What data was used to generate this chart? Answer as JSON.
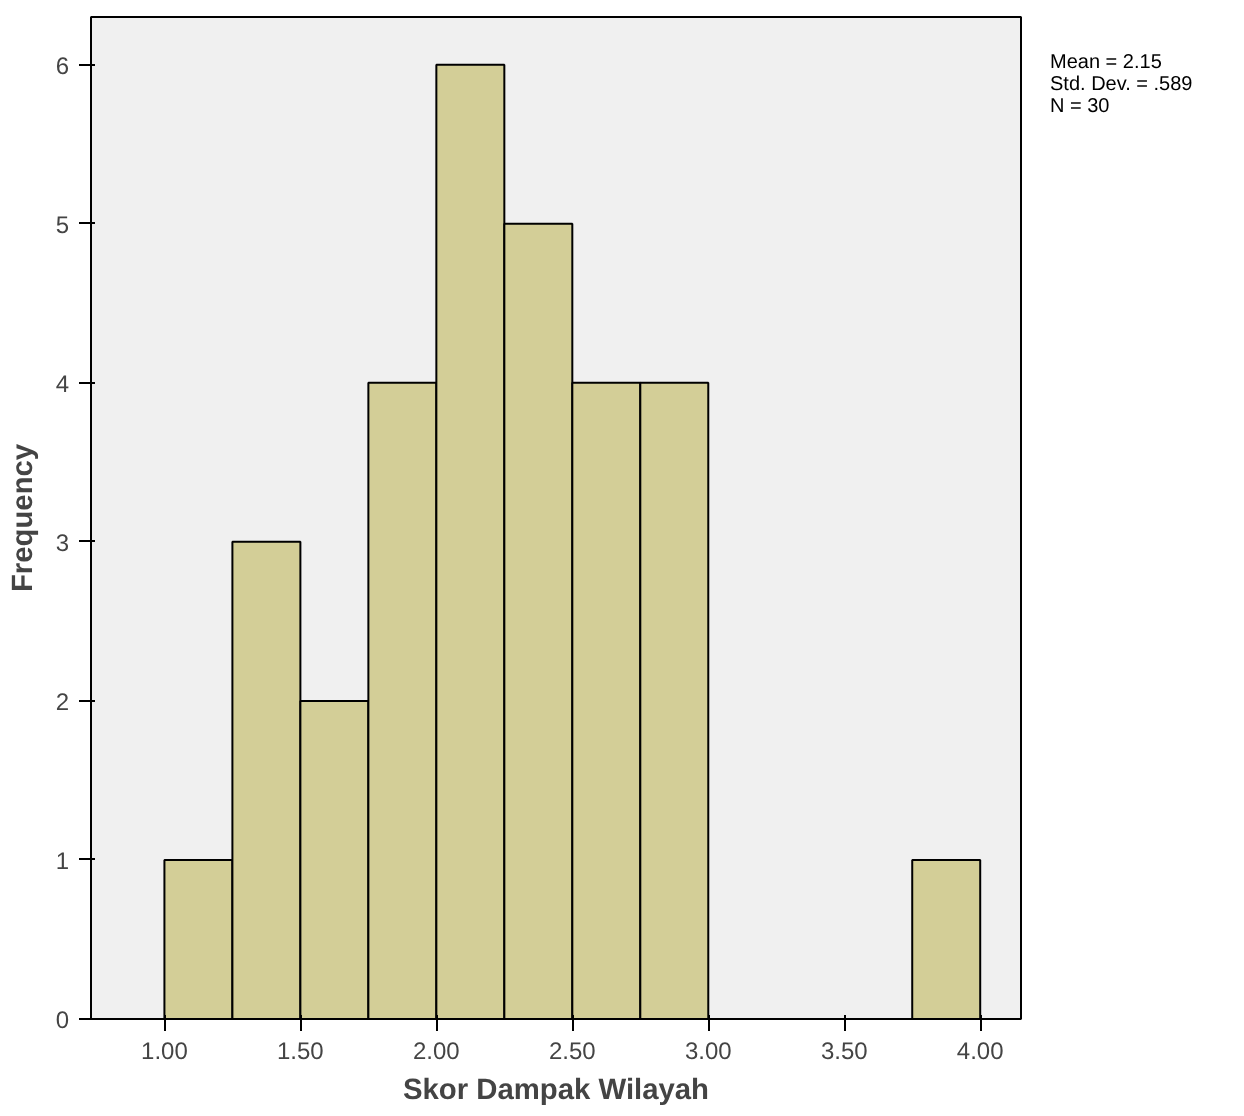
{
  "chart_data": {
    "type": "histogram",
    "xlabel": "Skor Dampak Wilayah",
    "ylabel": "Frequency",
    "bins": [
      1.0,
      1.25,
      1.5,
      1.75,
      2.0,
      2.25,
      2.5,
      2.75,
      3.0,
      3.25,
      3.5,
      3.75,
      4.0
    ],
    "values": [
      1,
      3,
      2,
      4,
      6,
      5,
      4,
      4,
      0,
      0,
      0,
      1
    ],
    "color": "#d3ce97",
    "xlim": [
      0.73,
      4.15
    ],
    "ylim": [
      0,
      6.3
    ],
    "xticks": [
      {
        "value": 1.0,
        "label": "1.00"
      },
      {
        "value": 1.5,
        "label": "1.50"
      },
      {
        "value": 2.0,
        "label": "2.00"
      },
      {
        "value": 2.5,
        "label": "2.50"
      },
      {
        "value": 3.0,
        "label": "3.00"
      },
      {
        "value": 3.5,
        "label": "3.50"
      },
      {
        "value": 4.0,
        "label": "4.00"
      }
    ],
    "yticks": [
      0,
      1,
      2,
      3,
      4,
      5,
      6
    ],
    "grid": false,
    "annotations": [
      "Mean = 2.15",
      "Std. Dev. = .589",
      "N = 30"
    ]
  }
}
